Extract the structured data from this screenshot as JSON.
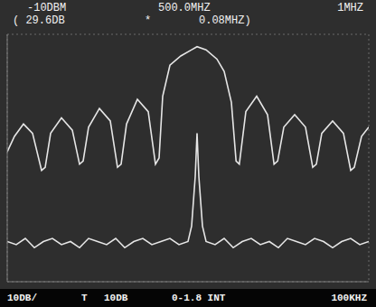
{
  "chart_data": {
    "type": "line",
    "annotations": [
      "-10DBM",
      "500.0MHZ",
      "1MHZ",
      "( 29.6DB",
      "*",
      "0.08MHZ)",
      "10DB/",
      "T",
      "10DB",
      "0-1.8 INT",
      "100KHZ"
    ],
    "xlim": [
      495,
      505
    ],
    "xticks": [
      495,
      496,
      497,
      498,
      499,
      500,
      501,
      502,
      503,
      504,
      505
    ],
    "ylim": [
      -90,
      -10
    ],
    "yticks": [
      -90,
      -80,
      -70,
      -60,
      -50,
      -40,
      -30,
      -20,
      -10
    ],
    "grid": true,
    "tick_labels": false,
    "series": [
      {
        "color": "#e6e6e6",
        "x": [
          495.0,
          495.2,
          495.45,
          495.7,
          495.95,
          496.05,
          496.2,
          496.5,
          496.8,
          497.0,
          497.1,
          497.25,
          497.55,
          497.85,
          498.05,
          498.15,
          498.3,
          498.6,
          498.9,
          499.1,
          499.2,
          499.3,
          499.5,
          499.8,
          500.1,
          500.25,
          500.5,
          500.8,
          501.0,
          501.2,
          501.33,
          501.42,
          501.6,
          501.9,
          502.2,
          502.38,
          502.48,
          502.65,
          502.95,
          503.25,
          503.45,
          503.55,
          503.7,
          504.0,
          504.3,
          504.5,
          504.6,
          504.8,
          505.0
        ],
        "values": [
          -48,
          -43,
          -39,
          -42,
          -54,
          -53,
          -42,
          -37,
          -41,
          -52,
          -51,
          -40,
          -34,
          -38,
          -53,
          -52,
          -39,
          -31,
          -35,
          -52,
          -50,
          -30,
          -20,
          -17,
          -15,
          -14,
          -15,
          -18,
          -22,
          -32,
          -51,
          -52,
          -35,
          -30,
          -36,
          -52,
          -51,
          -40,
          -36,
          -40,
          -53,
          -52,
          -42,
          -38,
          -42,
          -54,
          -53,
          -43,
          -40
        ]
      },
      {
        "color": "#e6e6e6",
        "x": [
          495,
          495.25,
          495.5,
          495.75,
          496,
          496.25,
          496.5,
          496.75,
          497,
          497.25,
          497.5,
          497.75,
          498,
          498.25,
          498.5,
          498.75,
          499,
          499.25,
          499.5,
          499.75,
          500,
          500.1,
          500.2,
          500.25,
          500.3,
          500.4,
          500.5,
          500.75,
          501,
          501.25,
          501.5,
          501.75,
          502,
          502.25,
          502.5,
          502.75,
          503,
          503.25,
          503.5,
          503.75,
          504,
          504.25,
          504.5,
          504.75,
          505
        ],
        "values": [
          -77,
          -78,
          -76,
          -79,
          -77,
          -76,
          -78,
          -77,
          -79,
          -76,
          -77,
          -78,
          -76,
          -79,
          -77,
          -76,
          -78,
          -77,
          -76,
          -78,
          -77,
          -72,
          -56,
          -42,
          -56,
          -72,
          -77,
          -78,
          -76,
          -79,
          -77,
          -76,
          -78,
          -77,
          -79,
          -76,
          -77,
          -78,
          -76,
          -77,
          -79,
          -77,
          -76,
          -78,
          -77
        ]
      }
    ]
  }
}
